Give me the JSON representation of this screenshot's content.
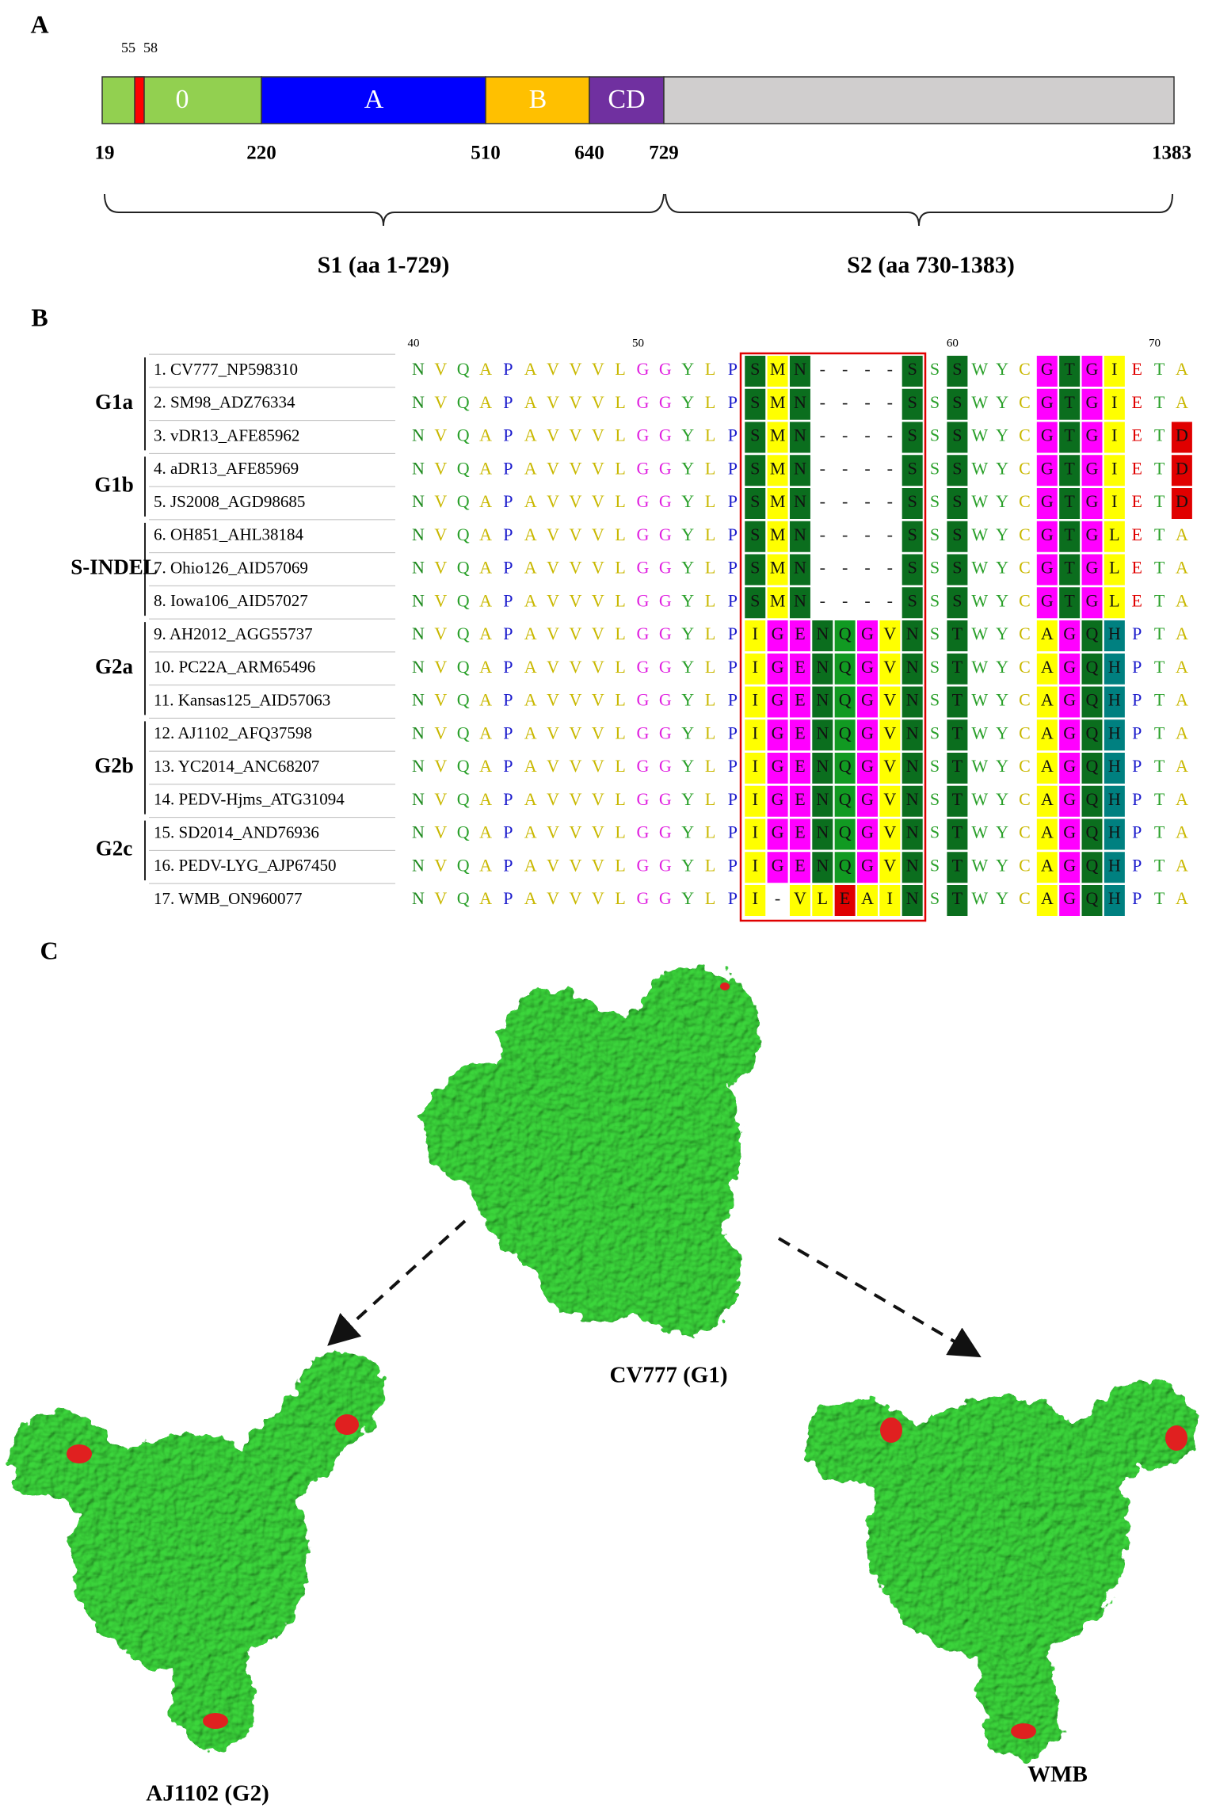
{
  "panel_a": {
    "label": "A",
    "domains": [
      "0",
      "A",
      "B",
      "CD"
    ],
    "site_labels": [
      55,
      58
    ],
    "positions": [
      19,
      220,
      510,
      640,
      729,
      1383
    ],
    "subunits": [
      "S1 (aa 1-729)",
      "S2 (aa 730-1383)"
    ]
  },
  "panel_b": {
    "label": "B",
    "ruler": [
      40,
      50,
      60,
      70
    ],
    "groups": [
      "G1a",
      "G1b",
      "S-INDEL",
      "G2a",
      "G2b",
      "G2c"
    ],
    "sequences": [
      {
        "name": "1. CV777_NP598310",
        "residues": "NVQAPAVVVLGGYLPSMN----SSSWYCGTGIETA"
      },
      {
        "name": "2. SM98_ADZ76334",
        "residues": "NVQAPAVVVLGGYLPSMN----SSSWYCGTGIETA"
      },
      {
        "name": "3. vDR13_AFE85962",
        "residues": "NVQAPAVVVLGGYLPSMN----SSSWYCGTGIETD"
      },
      {
        "name": "4. aDR13_AFE85969",
        "residues": "NVQAPAVVVLGGYLPSMN----SSSWYCGTGIETD"
      },
      {
        "name": "5. JS2008_AGD98685",
        "residues": "NVQAPAVVVLGGYLPSMN----SSSWYCGTGIETD"
      },
      {
        "name": "6. OH851_AHL38184",
        "residues": "NVQAPAVVVLGGYLPSMN----SSSWYCGTGLETA"
      },
      {
        "name": "7. Ohio126_AID57069",
        "residues": "NVQAPAVVVLGGYLPSMN----SSSWYCGTGLETA"
      },
      {
        "name": "8. Iowa106_AID57027",
        "residues": "NVQAPAVVVLGGYLPSMN----SSSWYCGTGLETA"
      },
      {
        "name": "9. AH2012_AGG55737",
        "residues": "NVQAPAVVVLGGYLPIGENQGVNSTWYCAGQHPTA"
      },
      {
        "name": "10. PC22A_ARM65496",
        "residues": "NVQAPAVVVLGGYLPIGENQGVNSTWYCAGQHPTA"
      },
      {
        "name": "11. Kansas125_AID57063",
        "residues": "NVQAPAVVVLGGYLPIGENQGVNSTWYCAGQHPTA"
      },
      {
        "name": "12. AJ1102_AFQ37598",
        "residues": "NVQAPAVVVLGGYLPIGENQGVNSTWYCAGQHPTA"
      },
      {
        "name": "13. YC2014_ANC68207",
        "residues": "NVQAPAVVVLGGYLPIGENQGVNSTWYCAGQHPTA"
      },
      {
        "name": "14. PEDV-Hjms_ATG31094",
        "residues": "NVQAPAVVVLGGYLPIGENQGVNSTWYCAGQHPTA"
      },
      {
        "name": "15. SD2014_AND76936",
        "residues": "NVQAPAVVVLGGYLPIGENQGVNSTWYCAGQHPTA"
      },
      {
        "name": "16. PEDV-LYG_AJP67450",
        "residues": "NVQAPAVVVLGGYLPIGENQGVNSTWYCAGQHPTA"
      },
      {
        "name": "17. WMB_ON960077",
        "residues": "NVQAPAVVVLGGYLPI-VLEAINSTWYCAGQHPTA"
      }
    ]
  },
  "panel_c": {
    "label": "C",
    "structures": [
      "CV777 (G1)",
      "AJ1102 (G2)",
      "WMB"
    ]
  }
}
